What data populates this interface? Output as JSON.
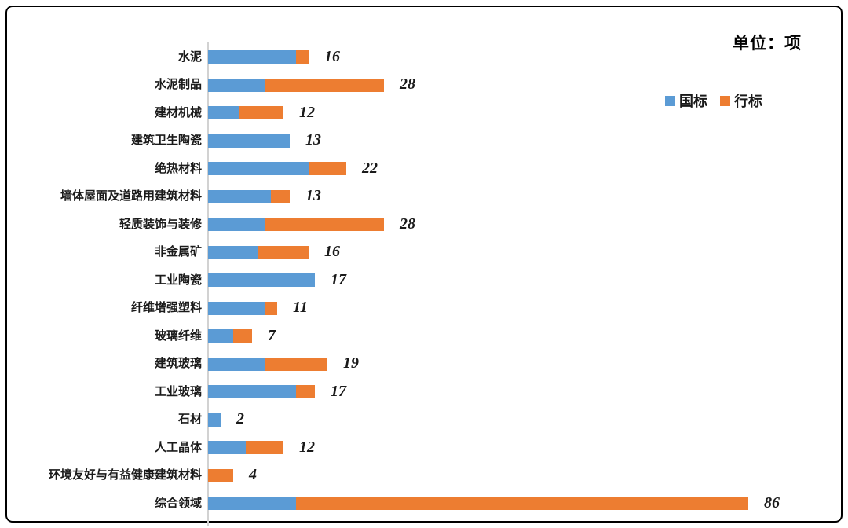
{
  "chart": {
    "unit_label": "单位：项"
  },
  "chart_data": {
    "type": "bar",
    "orientation": "horizontal",
    "stacked": true,
    "title": "单位：项",
    "unit": "项",
    "grid": false,
    "legend_position": "top-right",
    "value_labels": "total-at-bar-end",
    "categories": [
      "水泥",
      "水泥制品",
      "建材机械",
      "建筑卫生陶瓷",
      "绝热材料",
      "墙体屋面及道路用建筑材料",
      "轻质装饰与装修",
      "非金属矿",
      "工业陶瓷",
      "纤维增强塑料",
      "玻璃纤维",
      "建筑玻璃",
      "工业玻璃",
      "石材",
      "人工晶体",
      "环境友好与有益健康建筑材料",
      "综合领域"
    ],
    "series": [
      {
        "name": "国标",
        "color": "#5B9BD5",
        "values": [
          14,
          9,
          5,
          13,
          16,
          10,
          9,
          8,
          17,
          9,
          4,
          9,
          14,
          2,
          6,
          0,
          14
        ]
      },
      {
        "name": "行标",
        "color": "#ED7D31",
        "values": [
          2,
          19,
          7,
          0,
          6,
          3,
          19,
          8,
          0,
          2,
          3,
          10,
          3,
          0,
          6,
          4,
          72
        ]
      }
    ],
    "totals": [
      16,
      28,
      12,
      13,
      22,
      13,
      28,
      16,
      17,
      11,
      7,
      19,
      17,
      2,
      12,
      4,
      86
    ],
    "x_range": [
      0,
      86
    ]
  }
}
